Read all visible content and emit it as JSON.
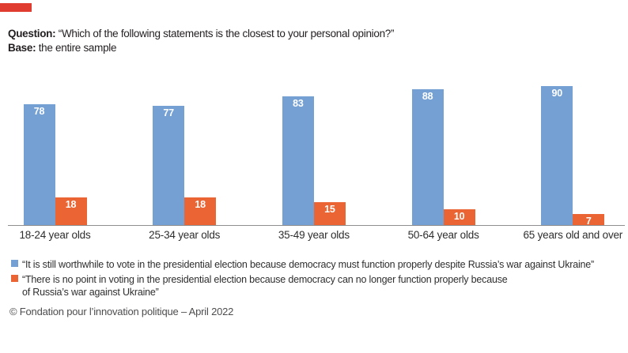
{
  "brand": {
    "color": "#E03C2F"
  },
  "header": {
    "question_label": "Question:",
    "question_text": " “Which of the following statements is the closest to your personal opinion?”",
    "base_label": "Base:",
    "base_text": " the entire sample"
  },
  "chart_data": {
    "type": "bar",
    "categories": [
      "18-24 year olds",
      "25-34 year olds",
      "35-49 year olds",
      "50-64 year olds",
      "65 years old and over"
    ],
    "series": [
      {
        "name": "“It is still worthwhile to vote in the presidential election because democracy must function properly despite Russia’s war against Ukraine”",
        "color": "#74A0D4",
        "values": [
          78,
          77,
          83,
          88,
          90
        ]
      },
      {
        "name": "“There is no point in voting in the presidential election because democracy can no longer function properly because of Russia’s war against Ukraine”",
        "color": "#EB6434",
        "values": [
          18,
          18,
          15,
          10,
          7
        ]
      }
    ],
    "ylim": [
      0,
      100
    ],
    "grid": false,
    "value_labels": "inside-top-white-bold",
    "legend_position": "bottom-left"
  },
  "legend": {
    "items": [
      {
        "color": "#74A0D4",
        "label": "“It is still worthwhile to vote in the presidential election because democracy must function properly despite Russia’s war against Ukraine”"
      },
      {
        "color": "#EB6434",
        "label": "“There is no point in voting in the presidential election because democracy can no longer function properly because\nof Russia’s war against Ukraine”"
      }
    ]
  },
  "footer": {
    "text": "© Fondation pour l’innovation politique – April 2022"
  },
  "colors": {
    "blue": "#74A0D4",
    "orange": "#EB6434",
    "brand_red": "#E03C2F",
    "axis": "#8F8F8F"
  }
}
